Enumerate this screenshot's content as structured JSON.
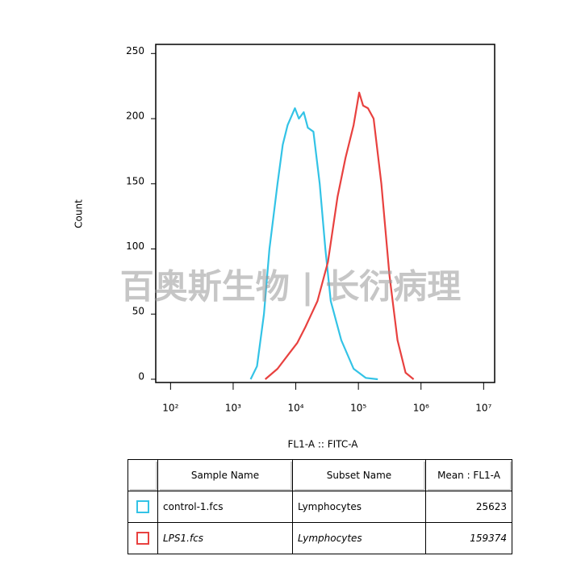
{
  "chart_data": {
    "type": "line",
    "x_label": "FL1-A :: FITC-A",
    "y_label": "Count",
    "watermark": "百奥斯生物 | 长衍病理",
    "xscale": "log",
    "xlim": [
      58,
      15000000
    ],
    "xticks": [
      {
        "value": 100,
        "label": "10²"
      },
      {
        "value": 1000,
        "label": "10³"
      },
      {
        "value": 10000,
        "label": "10⁴"
      },
      {
        "value": 100000,
        "label": "10⁵"
      },
      {
        "value": 1000000,
        "label": "10⁶"
      },
      {
        "value": 10000000,
        "label": "10⁷"
      }
    ],
    "ylim": [
      -2.5,
      257
    ],
    "yticks": [
      0,
      50,
      100,
      150,
      200,
      250
    ],
    "series": [
      {
        "name": "control-1.fcs",
        "color": "#33c3e6",
        "x": [
          1900,
          2400,
          3100,
          3800,
          5100,
          6200,
          7400,
          9700,
          11200,
          13400,
          15600,
          19100,
          24100,
          29700,
          36200,
          53200,
          83800,
          131000,
          204000
        ],
        "values": [
          0,
          10,
          50,
          100,
          150,
          180,
          195,
          208,
          200,
          205,
          193,
          190,
          150,
          100,
          60,
          30,
          8,
          1,
          0
        ]
      },
      {
        "name": "LPS1.fcs",
        "color": "#e8413f",
        "x": [
          3250,
          5100,
          7900,
          10600,
          14200,
          22200,
          32600,
          46400,
          62300,
          83800,
          103000,
          119000,
          142000,
          175000,
          233000,
          313000,
          421000,
          567000,
          763000
        ],
        "values": [
          0,
          8,
          20,
          28,
          40,
          60,
          90,
          140,
          170,
          195,
          220,
          210,
          208,
          200,
          150,
          80,
          30,
          5,
          0
        ]
      }
    ]
  },
  "table": {
    "columns": [
      "Sample Name",
      "Subset Name",
      "Mean : FL1-A"
    ],
    "rows": [
      [
        "control-1.fcs",
        "Lymphocytes",
        25623
      ],
      [
        "LPS1.fcs",
        "Lymphocytes",
        159374
      ]
    ]
  }
}
